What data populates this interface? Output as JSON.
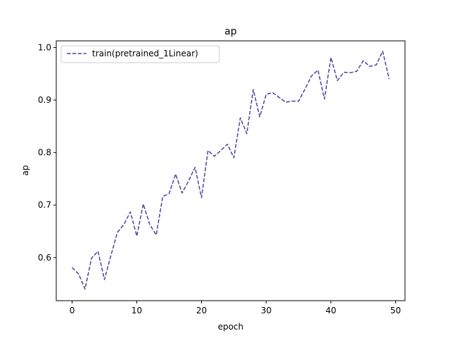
{
  "chart_data": {
    "type": "line",
    "title": "ap",
    "xlabel": "epoch",
    "ylabel": "ap",
    "xlim": [
      -2.45,
      51.45
    ],
    "ylim": [
      0.5179,
      1.0128
    ],
    "xticks": [
      0,
      10,
      20,
      30,
      40,
      50
    ],
    "yticks": [
      0.6,
      0.7,
      0.8,
      0.9,
      1.0
    ],
    "ytick_labels": [
      "0.6",
      "0.7",
      "0.8",
      "0.9",
      "1.0"
    ],
    "grid": false,
    "legend_position": "upper-left",
    "x": [
      0,
      1,
      2,
      3,
      4,
      5,
      6,
      7,
      8,
      9,
      10,
      11,
      12,
      13,
      14,
      15,
      16,
      17,
      18,
      19,
      20,
      21,
      22,
      23,
      24,
      25,
      26,
      27,
      28,
      29,
      30,
      31,
      32,
      33,
      34,
      35,
      36,
      37,
      38,
      39,
      40,
      41,
      42,
      43,
      44,
      45,
      46,
      47,
      48,
      49
    ],
    "series": [
      {
        "name": "train(pretrained_1Linear)",
        "color": "#4545a0",
        "style": "dashed",
        "values": [
          0.581,
          0.569,
          0.54,
          0.599,
          0.612,
          0.558,
          0.604,
          0.648,
          0.663,
          0.687,
          0.641,
          0.702,
          0.663,
          0.643,
          0.716,
          0.722,
          0.759,
          0.723,
          0.746,
          0.772,
          0.714,
          0.804,
          0.793,
          0.804,
          0.816,
          0.79,
          0.866,
          0.836,
          0.92,
          0.868,
          0.911,
          0.914,
          0.905,
          0.896,
          0.898,
          0.898,
          0.921,
          0.946,
          0.957,
          0.902,
          0.981,
          0.937,
          0.953,
          0.952,
          0.955,
          0.975,
          0.964,
          0.967,
          0.993,
          0.94
        ]
      }
    ]
  }
}
